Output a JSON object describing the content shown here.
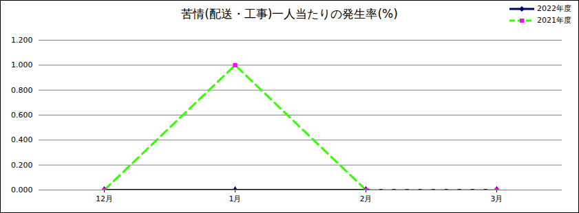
{
  "chart_data": {
    "type": "line",
    "title": "苦情(配送・工事)一人当たりの発生率(%)",
    "categories": [
      "12月",
      "1月",
      "2月",
      "3月"
    ],
    "series": [
      {
        "name": "2022年度",
        "color": "#000066",
        "marker": "diamond",
        "line_style": "solid",
        "values": [
          0,
          0,
          0,
          0
        ]
      },
      {
        "name": "2021年度",
        "color": "#33ff00",
        "marker": "square",
        "line_style": "dashed",
        "values": [
          0,
          1.0,
          0,
          0
        ]
      }
    ],
    "ylim": [
      0,
      1.2
    ],
    "yticks": [
      {
        "value": 0,
        "label": "0.000"
      },
      {
        "value": 0.2,
        "label": "0.200"
      },
      {
        "value": 0.4,
        "label": "0.400"
      },
      {
        "value": 0.6,
        "label": "0.600"
      },
      {
        "value": 0.8,
        "label": "0.800"
      },
      {
        "value": 1.0,
        "label": "1.000"
      },
      {
        "value": 1.2,
        "label": "1.200"
      }
    ],
    "grid": true,
    "legend": "top-right"
  }
}
